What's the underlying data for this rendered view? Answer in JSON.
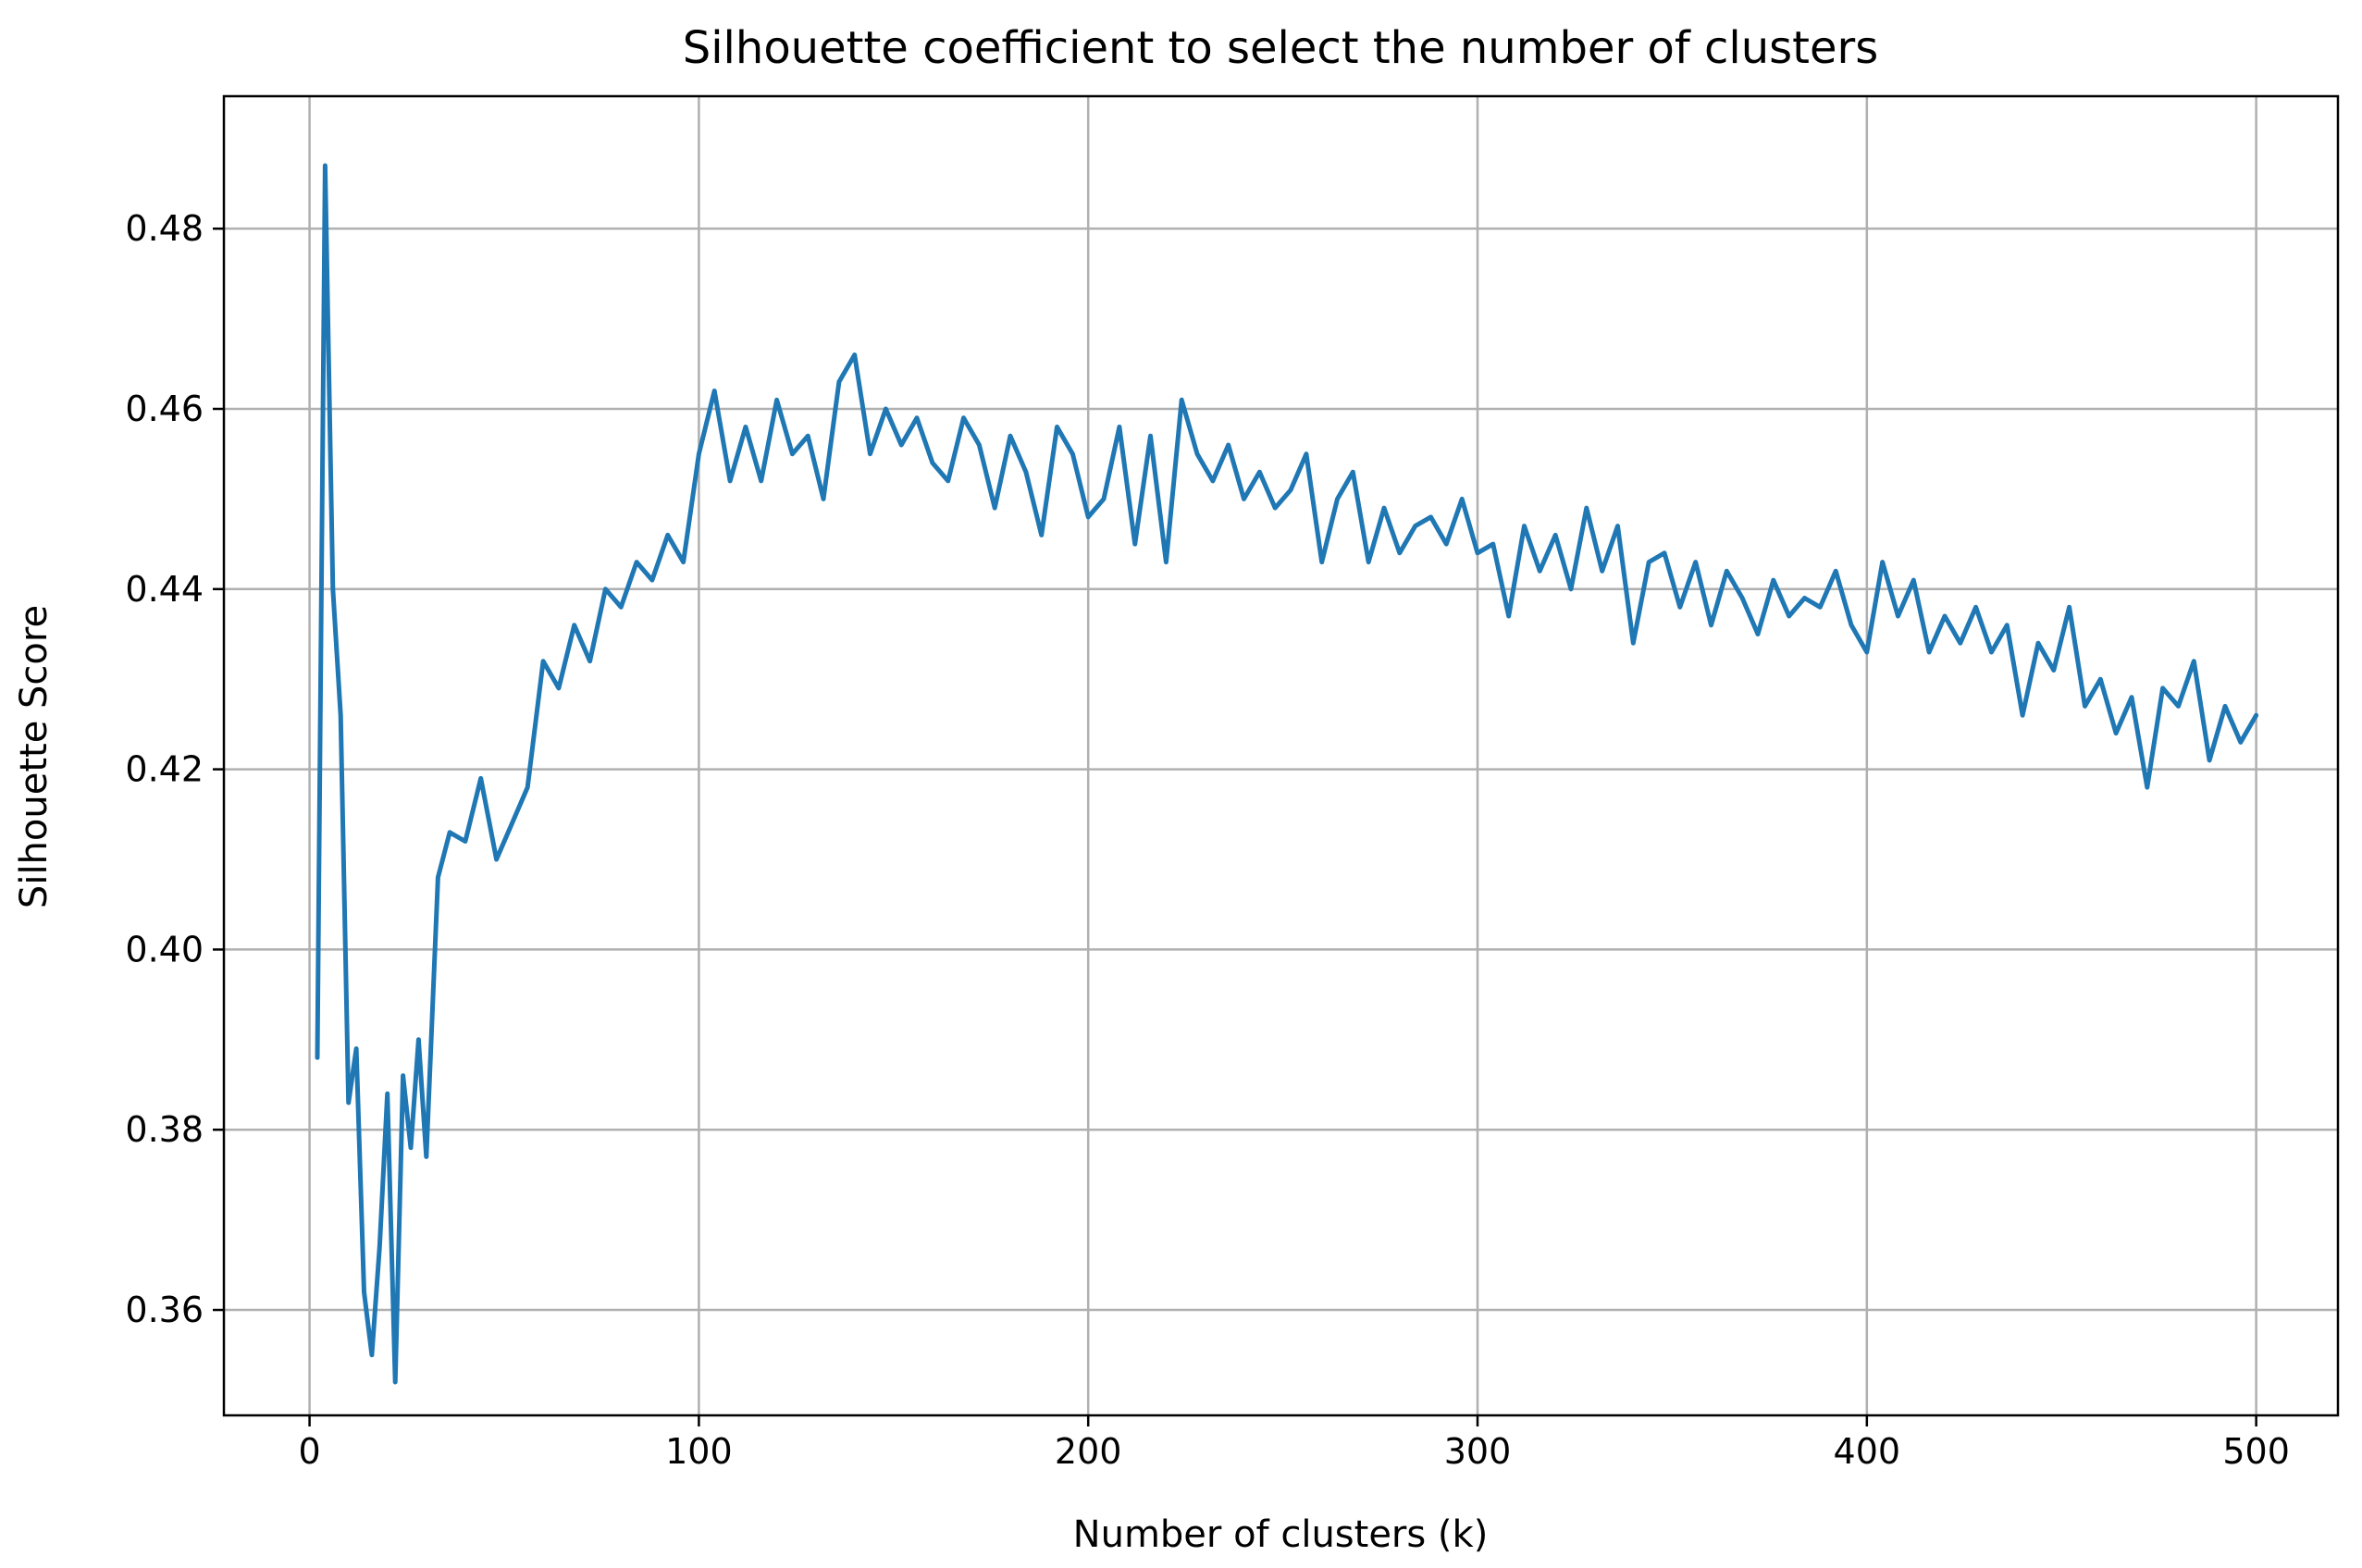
{
  "chart_data": {
    "type": "line",
    "title": "Silhouette coefficient to select the number of clusters",
    "xlabel": "Number of clusters (k)",
    "ylabel": "Silhouette Score",
    "xlim": [
      -22,
      521
    ],
    "ylim": [
      0.3483,
      0.4947
    ],
    "xticks": [
      0,
      100,
      200,
      300,
      400,
      500
    ],
    "xtick_labels": [
      "0",
      "100",
      "200",
      "300",
      "400",
      "500"
    ],
    "yticks": [
      0.36,
      0.38,
      0.4,
      0.42,
      0.44,
      0.46,
      0.48
    ],
    "ytick_labels": [
      "0.36",
      "0.38",
      "0.40",
      "0.42",
      "0.44",
      "0.46",
      "0.48"
    ],
    "grid": true,
    "legend": "none",
    "colors": {
      "line": "#1f77b4",
      "grid": "#b0b0b0",
      "axes": "#000000"
    },
    "series": [
      {
        "x": [
          2,
          4,
          6,
          8,
          10,
          12,
          14,
          16,
          18,
          20,
          22,
          24,
          26,
          28,
          30,
          33,
          36,
          40,
          44,
          48,
          52,
          56,
          60,
          64,
          68,
          72,
          76,
          80,
          84,
          88,
          92,
          96,
          100,
          104,
          108,
          112,
          116,
          120,
          124,
          128,
          132,
          136,
          140,
          144,
          148,
          152,
          156,
          160,
          164,
          168,
          172,
          176,
          180,
          184,
          188,
          192,
          196,
          200,
          204,
          208,
          212,
          216,
          220,
          224,
          228,
          232,
          236,
          240,
          244,
          248,
          252,
          256,
          260,
          264,
          268,
          272,
          276,
          280,
          284,
          288,
          292,
          296,
          300,
          304,
          308,
          312,
          316,
          320,
          324,
          328,
          332,
          336,
          340,
          344,
          348,
          352,
          356,
          360,
          364,
          368,
          372,
          376,
          380,
          384,
          388,
          392,
          396,
          400,
          404,
          408,
          412,
          416,
          420,
          424,
          428,
          432,
          436,
          440,
          444,
          448,
          452,
          456,
          460,
          464,
          468,
          472,
          476,
          480,
          484,
          488,
          492,
          496,
          500
        ],
        "y": [
          0.388,
          0.487,
          0.44,
          0.426,
          0.383,
          0.389,
          0.362,
          0.355,
          0.367,
          0.384,
          0.352,
          0.386,
          0.378,
          0.39,
          0.377,
          0.408,
          0.413,
          0.412,
          0.419,
          0.41,
          0.414,
          0.418,
          0.432,
          0.429,
          0.436,
          0.432,
          0.44,
          0.438,
          0.443,
          0.441,
          0.446,
          0.443,
          0.455,
          0.462,
          0.452,
          0.458,
          0.452,
          0.461,
          0.455,
          0.457,
          0.45,
          0.463,
          0.466,
          0.455,
          0.46,
          0.456,
          0.459,
          0.454,
          0.452,
          0.459,
          0.456,
          0.449,
          0.457,
          0.453,
          0.446,
          0.458,
          0.455,
          0.448,
          0.45,
          0.458,
          0.445,
          0.457,
          0.443,
          0.461,
          0.455,
          0.452,
          0.456,
          0.45,
          0.453,
          0.449,
          0.451,
          0.455,
          0.443,
          0.45,
          0.453,
          0.443,
          0.449,
          0.444,
          0.447,
          0.448,
          0.445,
          0.45,
          0.444,
          0.445,
          0.437,
          0.447,
          0.442,
          0.446,
          0.44,
          0.449,
          0.442,
          0.447,
          0.434,
          0.443,
          0.444,
          0.438,
          0.443,
          0.436,
          0.442,
          0.439,
          0.435,
          0.441,
          0.437,
          0.439,
          0.438,
          0.442,
          0.436,
          0.433,
          0.443,
          0.437,
          0.441,
          0.433,
          0.437,
          0.434,
          0.438,
          0.433,
          0.436,
          0.426,
          0.434,
          0.431,
          0.438,
          0.427,
          0.43,
          0.424,
          0.428,
          0.418,
          0.429,
          0.427,
          0.432,
          0.421,
          0.427,
          0.423,
          0.426
        ]
      }
    ]
  }
}
